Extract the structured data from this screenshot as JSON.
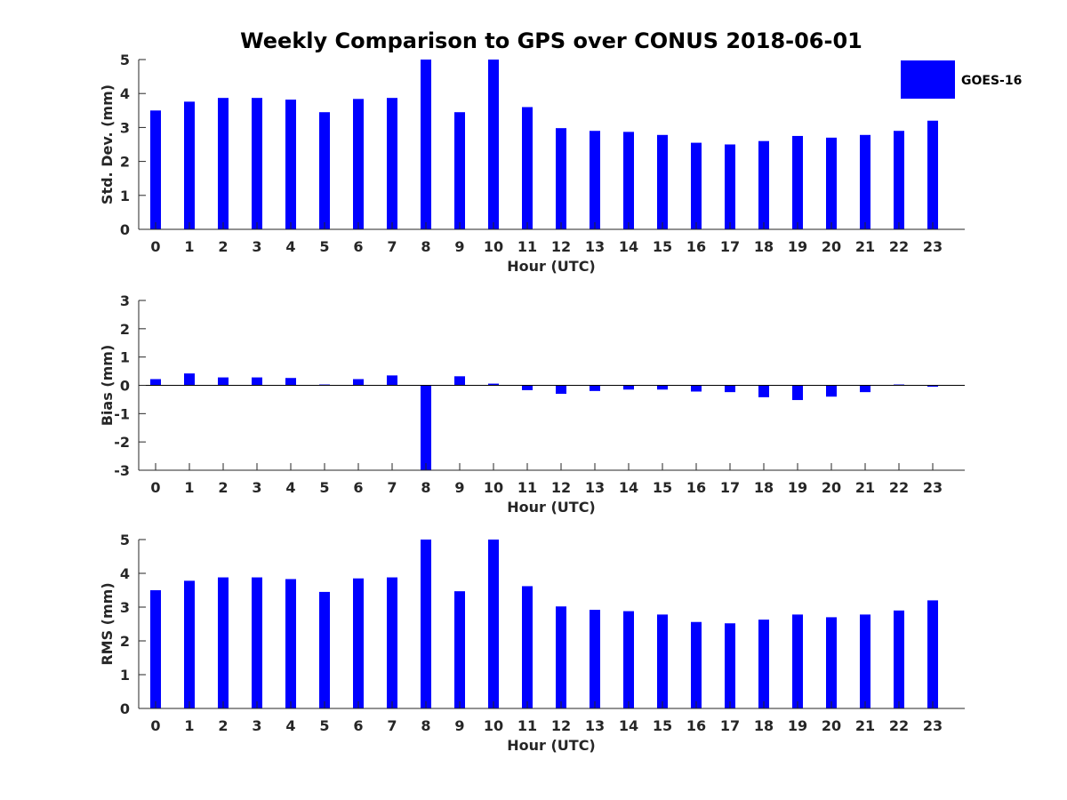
{
  "title": "Weekly Comparison to GPS over CONUS 2018-06-01",
  "legend": {
    "label": "GOES-16",
    "placement": "top-right"
  },
  "colors": {
    "bar": "#0000ff",
    "axis": "#262626",
    "text": "#262626"
  },
  "chart_data": [
    {
      "type": "bar",
      "xlabel": "Hour (UTC)",
      "ylabel": "Std. Dev. (mm)",
      "ylim": [
        0,
        5
      ],
      "yticks": [
        "0",
        "1",
        "2",
        "3",
        "4",
        "5"
      ],
      "categories": [
        "0",
        "1",
        "2",
        "3",
        "4",
        "5",
        "6",
        "7",
        "8",
        "9",
        "10",
        "11",
        "12",
        "13",
        "14",
        "15",
        "16",
        "17",
        "18",
        "19",
        "20",
        "21",
        "22",
        "23"
      ],
      "series": [
        {
          "name": "GOES-16",
          "values": [
            3.5,
            3.76,
            3.87,
            3.87,
            3.82,
            3.45,
            3.84,
            3.87,
            5.0,
            3.45,
            5.0,
            3.6,
            2.98,
            2.9,
            2.87,
            2.78,
            2.55,
            2.5,
            2.6,
            2.75,
            2.7,
            2.78,
            2.9,
            3.2
          ]
        }
      ]
    },
    {
      "type": "bar",
      "xlabel": "Hour (UTC)",
      "ylabel": "Bias (mm)",
      "ylim": [
        -3,
        3
      ],
      "yticks": [
        "-3",
        "-2",
        "-1",
        "0",
        "1",
        "2",
        "3"
      ],
      "categories": [
        "0",
        "1",
        "2",
        "3",
        "4",
        "5",
        "6",
        "7",
        "8",
        "9",
        "10",
        "11",
        "12",
        "13",
        "14",
        "15",
        "16",
        "17",
        "18",
        "19",
        "20",
        "21",
        "22",
        "23"
      ],
      "series": [
        {
          "name": "GOES-16",
          "values": [
            0.22,
            0.42,
            0.28,
            0.28,
            0.26,
            0.03,
            0.22,
            0.35,
            -3.0,
            0.32,
            0.06,
            -0.17,
            -0.3,
            -0.2,
            -0.15,
            -0.15,
            -0.22,
            -0.24,
            -0.42,
            -0.52,
            -0.4,
            -0.24,
            0.03,
            -0.05
          ]
        }
      ]
    },
    {
      "type": "bar",
      "xlabel": "Hour (UTC)",
      "ylabel": "RMS (mm)",
      "ylim": [
        0,
        5
      ],
      "yticks": [
        "0",
        "1",
        "2",
        "3",
        "4",
        "5"
      ],
      "categories": [
        "0",
        "1",
        "2",
        "3",
        "4",
        "5",
        "6",
        "7",
        "8",
        "9",
        "10",
        "11",
        "12",
        "13",
        "14",
        "15",
        "16",
        "17",
        "18",
        "19",
        "20",
        "21",
        "22",
        "23"
      ],
      "series": [
        {
          "name": "GOES-16",
          "values": [
            3.5,
            3.78,
            3.88,
            3.88,
            3.83,
            3.45,
            3.85,
            3.88,
            5.0,
            3.47,
            5.0,
            3.62,
            3.02,
            2.92,
            2.88,
            2.78,
            2.56,
            2.52,
            2.63,
            2.78,
            2.7,
            2.78,
            2.9,
            3.2
          ]
        }
      ]
    }
  ]
}
